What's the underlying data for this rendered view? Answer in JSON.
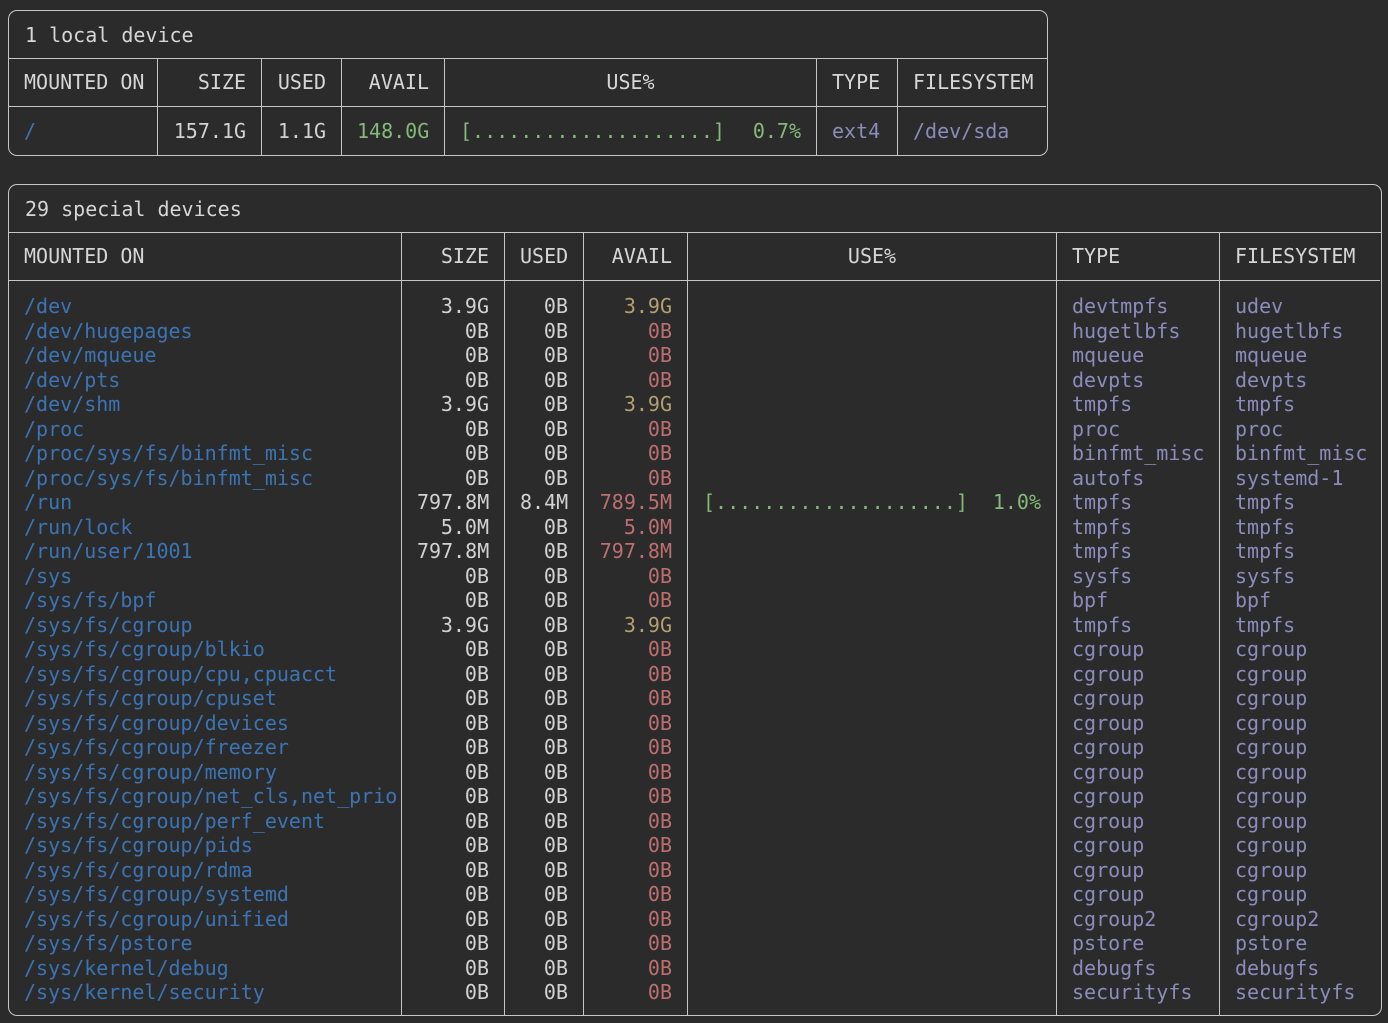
{
  "colors": {
    "background": "#2b2b2b",
    "border": "#c6c6c6",
    "heading_text": "#d6d6d6",
    "value_text": "#d2d2d2",
    "mount_blue": "#3b74b4",
    "avail_green": "#83ba78",
    "avail_yellow": "#b3a06e",
    "avail_red": "#bd6f6f",
    "type_purple": "#8e8abc"
  },
  "local_table": {
    "title": "1 local device",
    "headers": [
      "MOUNTED ON",
      "SIZE",
      "USED",
      "AVAIL",
      "USE%",
      "TYPE",
      "FILESYSTEM"
    ],
    "rows": [
      {
        "mount": "/",
        "size": "157.1G",
        "used": "1.1G",
        "avail": "148.0G",
        "avail_color": "green",
        "bar": "[....................]",
        "pct": "0.7%",
        "type": "ext4",
        "fs": "/dev/sda"
      }
    ]
  },
  "special_table": {
    "title": "29 special devices",
    "headers": [
      "MOUNTED ON",
      "SIZE",
      "USED",
      "AVAIL",
      "USE%",
      "TYPE",
      "FILESYSTEM"
    ],
    "rows": [
      {
        "mount": "/dev",
        "size": "3.9G",
        "used": "0B",
        "avail": "3.9G",
        "avail_color": "yellow",
        "bar": "",
        "pct": "",
        "type": "devtmpfs",
        "fs": "udev"
      },
      {
        "mount": "/dev/hugepages",
        "size": "0B",
        "used": "0B",
        "avail": "0B",
        "avail_color": "red",
        "bar": "",
        "pct": "",
        "type": "hugetlbfs",
        "fs": "hugetlbfs"
      },
      {
        "mount": "/dev/mqueue",
        "size": "0B",
        "used": "0B",
        "avail": "0B",
        "avail_color": "red",
        "bar": "",
        "pct": "",
        "type": "mqueue",
        "fs": "mqueue"
      },
      {
        "mount": "/dev/pts",
        "size": "0B",
        "used": "0B",
        "avail": "0B",
        "avail_color": "red",
        "bar": "",
        "pct": "",
        "type": "devpts",
        "fs": "devpts"
      },
      {
        "mount": "/dev/shm",
        "size": "3.9G",
        "used": "0B",
        "avail": "3.9G",
        "avail_color": "yellow",
        "bar": "",
        "pct": "",
        "type": "tmpfs",
        "fs": "tmpfs"
      },
      {
        "mount": "/proc",
        "size": "0B",
        "used": "0B",
        "avail": "0B",
        "avail_color": "red",
        "bar": "",
        "pct": "",
        "type": "proc",
        "fs": "proc"
      },
      {
        "mount": "/proc/sys/fs/binfmt_misc",
        "size": "0B",
        "used": "0B",
        "avail": "0B",
        "avail_color": "red",
        "bar": "",
        "pct": "",
        "type": "binfmt_misc",
        "fs": "binfmt_misc"
      },
      {
        "mount": "/proc/sys/fs/binfmt_misc",
        "size": "0B",
        "used": "0B",
        "avail": "0B",
        "avail_color": "red",
        "bar": "",
        "pct": "",
        "type": "autofs",
        "fs": "systemd-1"
      },
      {
        "mount": "/run",
        "size": "797.8M",
        "used": "8.4M",
        "avail": "789.5M",
        "avail_color": "red",
        "bar": "[....................]",
        "pct": "1.0%",
        "type": "tmpfs",
        "fs": "tmpfs"
      },
      {
        "mount": "/run/lock",
        "size": "5.0M",
        "used": "0B",
        "avail": "5.0M",
        "avail_color": "red",
        "bar": "",
        "pct": "",
        "type": "tmpfs",
        "fs": "tmpfs"
      },
      {
        "mount": "/run/user/1001",
        "size": "797.8M",
        "used": "0B",
        "avail": "797.8M",
        "avail_color": "red",
        "bar": "",
        "pct": "",
        "type": "tmpfs",
        "fs": "tmpfs"
      },
      {
        "mount": "/sys",
        "size": "0B",
        "used": "0B",
        "avail": "0B",
        "avail_color": "red",
        "bar": "",
        "pct": "",
        "type": "sysfs",
        "fs": "sysfs"
      },
      {
        "mount": "/sys/fs/bpf",
        "size": "0B",
        "used": "0B",
        "avail": "0B",
        "avail_color": "red",
        "bar": "",
        "pct": "",
        "type": "bpf",
        "fs": "bpf"
      },
      {
        "mount": "/sys/fs/cgroup",
        "size": "3.9G",
        "used": "0B",
        "avail": "3.9G",
        "avail_color": "yellow",
        "bar": "",
        "pct": "",
        "type": "tmpfs",
        "fs": "tmpfs"
      },
      {
        "mount": "/sys/fs/cgroup/blkio",
        "size": "0B",
        "used": "0B",
        "avail": "0B",
        "avail_color": "red",
        "bar": "",
        "pct": "",
        "type": "cgroup",
        "fs": "cgroup"
      },
      {
        "mount": "/sys/fs/cgroup/cpu,cpuacct",
        "size": "0B",
        "used": "0B",
        "avail": "0B",
        "avail_color": "red",
        "bar": "",
        "pct": "",
        "type": "cgroup",
        "fs": "cgroup"
      },
      {
        "mount": "/sys/fs/cgroup/cpuset",
        "size": "0B",
        "used": "0B",
        "avail": "0B",
        "avail_color": "red",
        "bar": "",
        "pct": "",
        "type": "cgroup",
        "fs": "cgroup"
      },
      {
        "mount": "/sys/fs/cgroup/devices",
        "size": "0B",
        "used": "0B",
        "avail": "0B",
        "avail_color": "red",
        "bar": "",
        "pct": "",
        "type": "cgroup",
        "fs": "cgroup"
      },
      {
        "mount": "/sys/fs/cgroup/freezer",
        "size": "0B",
        "used": "0B",
        "avail": "0B",
        "avail_color": "red",
        "bar": "",
        "pct": "",
        "type": "cgroup",
        "fs": "cgroup"
      },
      {
        "mount": "/sys/fs/cgroup/memory",
        "size": "0B",
        "used": "0B",
        "avail": "0B",
        "avail_color": "red",
        "bar": "",
        "pct": "",
        "type": "cgroup",
        "fs": "cgroup"
      },
      {
        "mount": "/sys/fs/cgroup/net_cls,net_prio",
        "size": "0B",
        "used": "0B",
        "avail": "0B",
        "avail_color": "red",
        "bar": "",
        "pct": "",
        "type": "cgroup",
        "fs": "cgroup"
      },
      {
        "mount": "/sys/fs/cgroup/perf_event",
        "size": "0B",
        "used": "0B",
        "avail": "0B",
        "avail_color": "red",
        "bar": "",
        "pct": "",
        "type": "cgroup",
        "fs": "cgroup"
      },
      {
        "mount": "/sys/fs/cgroup/pids",
        "size": "0B",
        "used": "0B",
        "avail": "0B",
        "avail_color": "red",
        "bar": "",
        "pct": "",
        "type": "cgroup",
        "fs": "cgroup"
      },
      {
        "mount": "/sys/fs/cgroup/rdma",
        "size": "0B",
        "used": "0B",
        "avail": "0B",
        "avail_color": "red",
        "bar": "",
        "pct": "",
        "type": "cgroup",
        "fs": "cgroup"
      },
      {
        "mount": "/sys/fs/cgroup/systemd",
        "size": "0B",
        "used": "0B",
        "avail": "0B",
        "avail_color": "red",
        "bar": "",
        "pct": "",
        "type": "cgroup",
        "fs": "cgroup"
      },
      {
        "mount": "/sys/fs/cgroup/unified",
        "size": "0B",
        "used": "0B",
        "avail": "0B",
        "avail_color": "red",
        "bar": "",
        "pct": "",
        "type": "cgroup2",
        "fs": "cgroup2"
      },
      {
        "mount": "/sys/fs/pstore",
        "size": "0B",
        "used": "0B",
        "avail": "0B",
        "avail_color": "red",
        "bar": "",
        "pct": "",
        "type": "pstore",
        "fs": "pstore"
      },
      {
        "mount": "/sys/kernel/debug",
        "size": "0B",
        "used": "0B",
        "avail": "0B",
        "avail_color": "red",
        "bar": "",
        "pct": "",
        "type": "debugfs",
        "fs": "debugfs"
      },
      {
        "mount": "/sys/kernel/security",
        "size": "0B",
        "used": "0B",
        "avail": "0B",
        "avail_color": "red",
        "bar": "",
        "pct": "",
        "type": "securityfs",
        "fs": "securityfs"
      }
    ]
  }
}
